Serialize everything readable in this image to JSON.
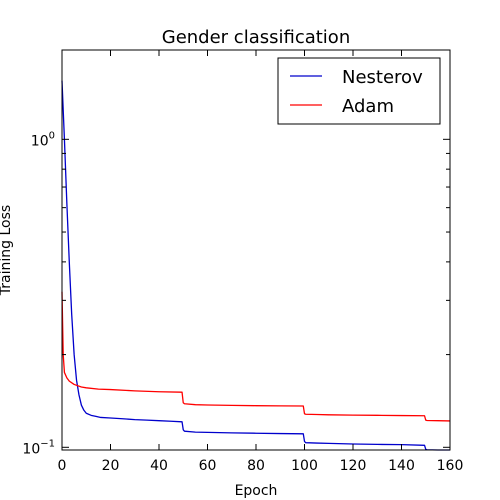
{
  "chart_data": {
    "type": "line",
    "title": "Gender classification",
    "xlabel": "Epoch",
    "ylabel": "Training Loss",
    "xlim": [
      0,
      160
    ],
    "ylim": [
      0.098,
      1.95
    ],
    "yscale": "log",
    "xticks": [
      "0",
      "20",
      "40",
      "60",
      "80",
      "100",
      "120",
      "140",
      "160"
    ],
    "ytick_labels": [
      {
        "value": 1.0,
        "label": "10^0"
      },
      {
        "value": 0.1,
        "label": "10^-1"
      }
    ],
    "grid": false,
    "legend": {
      "placement": "top-right"
    },
    "series": [
      {
        "name": "Nesterov",
        "color": "#0000cc",
        "x": [
          0,
          1,
          2,
          3,
          4,
          5,
          6,
          7,
          8,
          9,
          10,
          12,
          14,
          16,
          20,
          25,
          30,
          35,
          40,
          45,
          49.5,
          50,
          50.5,
          55,
          60,
          70,
          80,
          90,
          99.5,
          100,
          100.5,
          105,
          110,
          120,
          130,
          140,
          149.5,
          150,
          150.5,
          155,
          160
        ],
        "y": [
          1.55,
          1.0,
          0.62,
          0.4,
          0.27,
          0.2,
          0.165,
          0.148,
          0.137,
          0.132,
          0.129,
          0.127,
          0.126,
          0.125,
          0.1245,
          0.1238,
          0.123,
          0.1225,
          0.122,
          0.1215,
          0.121,
          0.114,
          0.1128,
          0.112,
          0.1118,
          0.1114,
          0.1111,
          0.1108,
          0.1106,
          0.1045,
          0.1035,
          0.1032,
          0.103,
          0.1025,
          0.1022,
          0.102,
          0.1015,
          0.0985,
          0.0982,
          0.098,
          0.098
        ]
      },
      {
        "name": "Adam",
        "color": "#ff0000",
        "x": [
          0,
          0.5,
          1,
          2,
          3,
          5,
          8,
          10,
          15,
          20,
          30,
          40,
          49.5,
          50,
          50.5,
          55,
          60,
          70,
          80,
          90,
          99.5,
          100,
          100.5,
          105,
          110,
          120,
          130,
          140,
          149.5,
          150,
          150.5,
          155,
          160
        ],
        "y": [
          0.32,
          0.2,
          0.175,
          0.168,
          0.164,
          0.16,
          0.157,
          0.156,
          0.1545,
          0.154,
          0.1525,
          0.1515,
          0.151,
          0.1395,
          0.1385,
          0.1375,
          0.1372,
          0.1368,
          0.1365,
          0.1363,
          0.1362,
          0.1285,
          0.128,
          0.1278,
          0.1275,
          0.1272,
          0.127,
          0.1268,
          0.1266,
          0.1225,
          0.1222,
          0.122,
          0.1218
        ]
      }
    ]
  }
}
